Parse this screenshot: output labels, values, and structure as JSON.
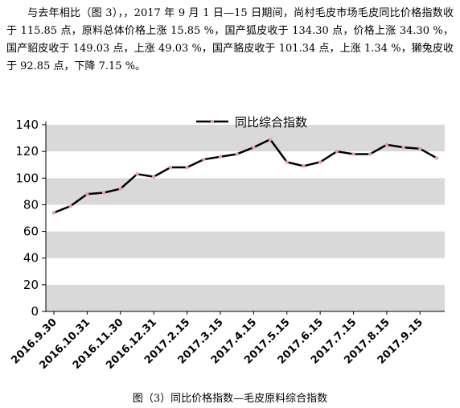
{
  "article": {
    "paragraph": "与去年相比（图 3），，2017 年 9 月 1 日—15 日期间，尚村毛皮市场毛皮同比价格指数收于 115.85 点，原料总体价格上涨 15.85 %，国产狐皮收于 134.30 点，价格上涨 34.30 %，国产貂皮收于 149.03 点，上涨 49.03 %，国产貉皮收于 101.34 点，上涨 1.34 %，獭兔皮收于 92.85 点，下降 7.15 %。",
    "caption": "图（3）同比价格指数—毛皮原料综合指数"
  },
  "chart_data": {
    "type": "line",
    "series": [
      {
        "name": "同比综合指数",
        "color": "#000000",
        "marker_color": "#e8a0a0",
        "values": [
          74,
          79,
          88,
          89,
          92,
          103,
          101,
          108,
          108,
          114,
          116,
          118,
          123,
          129,
          112,
          109,
          112,
          120,
          118,
          118,
          125,
          123,
          122,
          115
        ]
      }
    ],
    "x_labels": [
      "2016.9.30",
      "2016.10.31",
      "2016.11.30",
      "2016.12.31",
      "2017.2.15",
      "2017.3.15",
      "2017.4.15",
      "2017.5.15",
      "2017.6.15",
      "2017.7.15",
      "2017.8.15",
      "2017.9.15"
    ],
    "y_ticks": [
      0,
      20,
      40,
      60,
      80,
      100,
      120,
      140
    ],
    "ylim": [
      0,
      140
    ],
    "grid": "alternating gray bands",
    "legend": "top-center"
  }
}
